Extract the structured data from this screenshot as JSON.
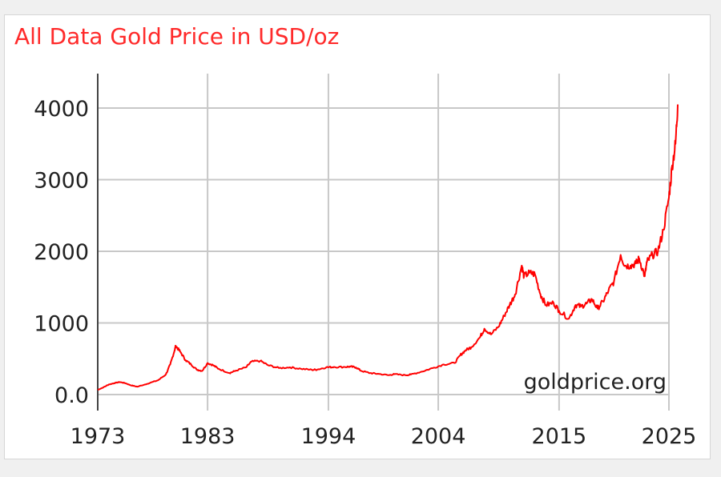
{
  "chart_data": {
    "type": "line",
    "title": "All Data Gold Price in USD/oz",
    "watermark": "goldprice.org",
    "xlabel": "",
    "ylabel": "",
    "x_ticks": [
      "1973",
      "1983",
      "1994",
      "2004",
      "2015",
      "2025"
    ],
    "y_ticks": [
      "0.0",
      "1000",
      "2000",
      "3000",
      "4000"
    ],
    "xlim": [
      1973,
      2025
    ],
    "ylim": [
      0,
      4000
    ],
    "grid": true,
    "legend": "none",
    "colors": {
      "line": "#ff0000",
      "title": "#ff2a2a",
      "grid": "#c8c8c8",
      "axis": "#444444"
    },
    "series": [
      {
        "x": [
          1973.0,
          1973.5,
          1974.0,
          1974.5,
          1975.0,
          1975.5,
          1976.0,
          1976.6,
          1977.5,
          1978.5,
          1979.2,
          1979.6,
          1980.0,
          1980.1,
          1980.5,
          1981.0,
          1981.5,
          1982.0,
          1982.5,
          1983.0,
          1983.5,
          1984.0,
          1985.0,
          1985.5,
          1986.5,
          1987.0,
          1987.8,
          1988.5,
          1989.5,
          1990.5,
          1991.5,
          1992.5,
          1993.0,
          1993.8,
          1994.5,
          1995.5,
          1996.0,
          1996.5,
          1997.0,
          1997.8,
          1998.5,
          1999.5,
          2000.0,
          2001.0,
          2001.5,
          2002.5,
          2003.5,
          2004.5,
          2005.5,
          2006.0,
          2006.5,
          2007.0,
          2007.8,
          2008.2,
          2008.8,
          2009.5,
          2010.0,
          2010.5,
          2011.0,
          2011.6,
          2011.8,
          2012.3,
          2012.8,
          2013.3,
          2013.8,
          2014.5,
          2015.0,
          2015.9,
          2016.5,
          2017.0,
          2017.5,
          2018.0,
          2018.5,
          2019.0,
          2019.5,
          2020.0,
          2020.6,
          2021.0,
          2021.5,
          2022.0,
          2022.3,
          2022.8,
          2023.0,
          2023.5,
          2024.0,
          2024.5,
          2025.0,
          2025.3,
          2025.6,
          2025.8
        ],
        "values": [
          65,
          100,
          140,
          160,
          175,
          160,
          130,
          110,
          150,
          200,
          280,
          420,
          620,
          680,
          600,
          480,
          420,
          350,
          330,
          440,
          410,
          360,
          300,
          330,
          380,
          460,
          470,
          410,
          370,
          380,
          360,
          345,
          350,
          380,
          385,
          385,
          390,
          380,
          330,
          300,
          290,
          270,
          285,
          270,
          280,
          320,
          370,
          420,
          440,
          550,
          620,
          660,
          800,
          920,
          840,
          950,
          1100,
          1250,
          1400,
          1800,
          1650,
          1700,
          1680,
          1400,
          1250,
          1280,
          1170,
          1060,
          1250,
          1230,
          1270,
          1330,
          1200,
          1300,
          1450,
          1580,
          1950,
          1800,
          1800,
          1830,
          1900,
          1650,
          1850,
          1950,
          2000,
          2300,
          2750,
          3200,
          3500,
          4050
        ]
      }
    ]
  }
}
